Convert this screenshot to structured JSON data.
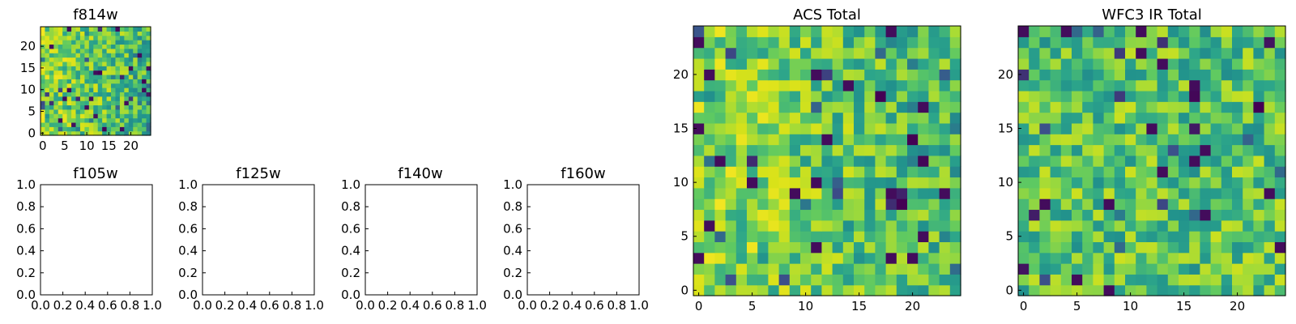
{
  "colors": {
    "palette": [
      "#440154",
      "#3b528b",
      "#21918c",
      "#2ca58a",
      "#5ec962",
      "#a5db36",
      "#d8e219",
      "#fde725"
    ]
  },
  "chart_data": [
    {
      "id": "f814w",
      "type": "heatmap",
      "title": "f814w",
      "grid_size": 25,
      "xlim": [
        -0.5,
        24.5
      ],
      "ylim": [
        -0.5,
        24.5
      ],
      "xticks": [
        "0",
        "5",
        "10",
        "15",
        "20"
      ],
      "yticks": [
        "0",
        "5",
        "10",
        "15",
        "20"
      ],
      "values_generator": "seeded-noise",
      "seed": 814,
      "gradient": "bright-left"
    },
    {
      "id": "f105w",
      "type": "empty",
      "title": "f105w",
      "xlim": [
        0,
        1
      ],
      "ylim": [
        0,
        1
      ],
      "xticks": [
        "0.0",
        "0.2",
        "0.4",
        "0.6",
        "0.8",
        "1.0"
      ],
      "yticks": [
        "0.0",
        "0.2",
        "0.4",
        "0.6",
        "0.8",
        "1.0"
      ]
    },
    {
      "id": "f125w",
      "type": "empty",
      "title": "f125w",
      "xlim": [
        0,
        1
      ],
      "ylim": [
        0,
        1
      ],
      "xticks": [
        "0.0",
        "0.2",
        "0.4",
        "0.6",
        "0.8",
        "1.0"
      ],
      "yticks": [
        "0.0",
        "0.2",
        "0.4",
        "0.6",
        "0.8",
        "1.0"
      ]
    },
    {
      "id": "f140w",
      "type": "empty",
      "title": "f140w",
      "xlim": [
        0,
        1
      ],
      "ylim": [
        0,
        1
      ],
      "xticks": [
        "0.0",
        "0.2",
        "0.4",
        "0.6",
        "0.8",
        "1.0"
      ],
      "yticks": [
        "0.0",
        "0.2",
        "0.4",
        "0.6",
        "0.8",
        "1.0"
      ]
    },
    {
      "id": "f160w",
      "type": "empty",
      "title": "f160w",
      "xlim": [
        0,
        1
      ],
      "ylim": [
        0,
        1
      ],
      "xticks": [
        "0.0",
        "0.2",
        "0.4",
        "0.6",
        "0.8",
        "1.0"
      ],
      "yticks": [
        "0.0",
        "0.2",
        "0.4",
        "0.6",
        "0.8",
        "1.0"
      ]
    },
    {
      "id": "acs-total",
      "type": "heatmap",
      "title": "ACS Total",
      "grid_size": 25,
      "xlim": [
        -0.5,
        24.5
      ],
      "ylim": [
        -0.5,
        24.5
      ],
      "xticks": [
        "0",
        "5",
        "10",
        "15",
        "20"
      ],
      "yticks": [
        "0",
        "5",
        "10",
        "15",
        "20"
      ],
      "values_generator": "seeded-noise",
      "seed": 1337,
      "gradient": "bright-left"
    },
    {
      "id": "wfc3-ir-total",
      "type": "heatmap",
      "title": "WFC3 IR Total",
      "grid_size": 25,
      "xlim": [
        -0.5,
        24.5
      ],
      "ylim": [
        -0.5,
        24.5
      ],
      "xticks": [
        "0",
        "5",
        "10",
        "15",
        "20"
      ],
      "yticks": [
        "0",
        "5",
        "10",
        "15",
        "20"
      ],
      "values_generator": "seeded-noise",
      "seed": 2024,
      "gradient": "mild"
    }
  ]
}
